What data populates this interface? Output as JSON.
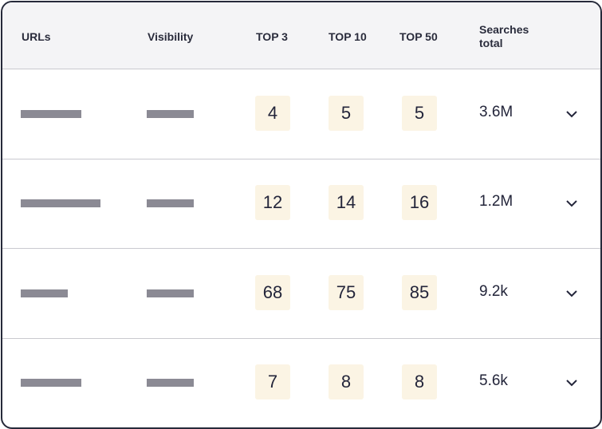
{
  "header": {
    "urls": "URLs",
    "visibility": "Visibility",
    "top3": "TOP 3",
    "top10": "TOP 10",
    "top50": "TOP 50",
    "searches_total": "Searches total"
  },
  "rows": [
    {
      "top3": "4",
      "top10": "5",
      "top50": "5",
      "searches_total": "3.6M"
    },
    {
      "top3": "12",
      "top10": "14",
      "top50": "16",
      "searches_total": "1.2M"
    },
    {
      "top3": "68",
      "top10": "75",
      "top50": "85",
      "searches_total": "9.2k"
    },
    {
      "top3": "7",
      "top10": "8",
      "top50": "8",
      "searches_total": "5.6k"
    }
  ],
  "icons": {
    "expand": "chevron-down-icon"
  },
  "colors": {
    "badge_bg": "#fbf4e4",
    "placeholder_bar": "#8b8a94",
    "header_bg": "#f4f4f6",
    "border": "#262a3a"
  }
}
